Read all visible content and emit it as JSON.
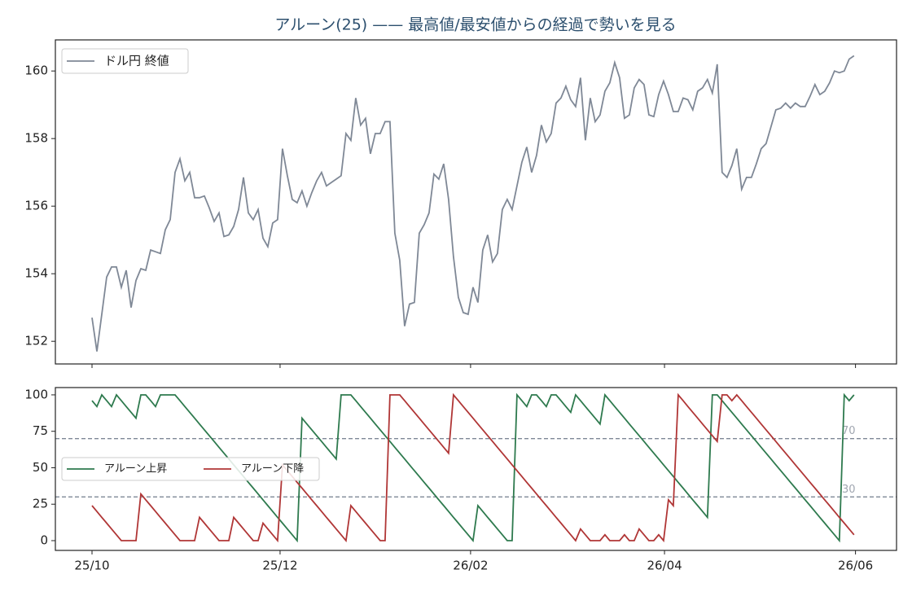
{
  "chart_data": [
    {
      "type": "line",
      "title": "アルーン(25) —— 最高値/最安値からの経過で勢いを見る",
      "series": [
        {
          "name": "ドル円 終値",
          "color": "#7f8896",
          "values": [
            152.7,
            151.7,
            152.8,
            153.9,
            154.2,
            154.2,
            153.6,
            154.1,
            153.0,
            153.8,
            154.15,
            154.1,
            154.7,
            154.65,
            154.6,
            155.3,
            155.6,
            157.0,
            157.4,
            156.75,
            157.0,
            156.25,
            156.25,
            156.3,
            155.95,
            155.55,
            155.8,
            155.1,
            155.15,
            155.4,
            155.9,
            156.85,
            155.8,
            155.6,
            155.9,
            155.05,
            154.8,
            155.5,
            155.6,
            157.7,
            156.9,
            156.2,
            156.1,
            156.45,
            156.0,
            156.4,
            156.75,
            157.0,
            156.6,
            156.7,
            156.8,
            156.9,
            158.15,
            157.95,
            159.2,
            158.4,
            158.6,
            157.55,
            158.15,
            158.15,
            158.5,
            158.5,
            155.2,
            154.4,
            152.45,
            153.1,
            153.15,
            155.2,
            155.45,
            155.8,
            156.95,
            156.8,
            157.25,
            156.2,
            154.5,
            153.3,
            152.85,
            152.8,
            153.6,
            153.15,
            154.7,
            155.15,
            154.35,
            154.6,
            155.9,
            156.2,
            155.9,
            156.6,
            157.3,
            157.75,
            157.0,
            157.5,
            158.4,
            157.9,
            158.15,
            159.05,
            159.2,
            159.55,
            159.15,
            158.95,
            159.8,
            157.95,
            159.2,
            158.5,
            158.7,
            159.4,
            159.65,
            160.25,
            159.8,
            158.6,
            158.7,
            159.5,
            159.75,
            159.6,
            158.7,
            158.65,
            159.3,
            159.7,
            159.3,
            158.8,
            158.8,
            159.2,
            159.15,
            158.85,
            159.4,
            159.5,
            159.75,
            159.35,
            160.2,
            157.0,
            156.85,
            157.2,
            157.7,
            156.5,
            156.85,
            156.85,
            157.25,
            157.7,
            157.85,
            158.35,
            158.85,
            158.9,
            159.05,
            158.9,
            159.05,
            158.95,
            158.95,
            159.25,
            159.6,
            159.3,
            159.4,
            159.65,
            160.0,
            159.95,
            160.0,
            160.35,
            160.45
          ]
        }
      ],
      "xlim": [
        -7.5,
        164.7
      ],
      "ylim": [
        151.33,
        160.92
      ],
      "yticks": [
        152,
        154,
        156,
        158,
        160
      ],
      "legend": "upper left"
    },
    {
      "type": "line",
      "series": [
        {
          "name": "アルーン上昇",
          "color": "#2e7a4e",
          "values": [
            96,
            92,
            100,
            96,
            92,
            100,
            96,
            92,
            88,
            84,
            100,
            100,
            96,
            92,
            100,
            100,
            100,
            100,
            96,
            92,
            88,
            84,
            80,
            76,
            72,
            68,
            64,
            60,
            56,
            52,
            48,
            44,
            40,
            36,
            32,
            28,
            24,
            20,
            16,
            12,
            8,
            4,
            0,
            84,
            80,
            76,
            72,
            68,
            64,
            60,
            56,
            100,
            100,
            100,
            96,
            92,
            88,
            84,
            80,
            76,
            72,
            68,
            64,
            60,
            56,
            52,
            48,
            44,
            40,
            36,
            32,
            28,
            24,
            20,
            16,
            12,
            8,
            4,
            0,
            24,
            20,
            16,
            12,
            8,
            4,
            0,
            0,
            100,
            96,
            92,
            100,
            100,
            96,
            92,
            100,
            100,
            96,
            92,
            88,
            100,
            96,
            92,
            88,
            84,
            80,
            100,
            96,
            92,
            88,
            84,
            80,
            76,
            72,
            68,
            64,
            60,
            56,
            52,
            48,
            44,
            40,
            36,
            32,
            28,
            24,
            20,
            16,
            100,
            100,
            96,
            92,
            88,
            84,
            80,
            76,
            72,
            68,
            64,
            60,
            56,
            52,
            48,
            44,
            40,
            36,
            32,
            28,
            24,
            20,
            16,
            12,
            8,
            4,
            0,
            100,
            96,
            100
          ]
        },
        {
          "name": "アルーン下降",
          "color": "#b03636",
          "values": [
            24,
            20,
            16,
            12,
            8,
            4,
            0,
            0,
            0,
            0,
            32,
            28,
            24,
            20,
            16,
            12,
            8,
            4,
            0,
            0,
            0,
            0,
            16,
            12,
            8,
            4,
            0,
            0,
            0,
            16,
            12,
            8,
            4,
            0,
            0,
            12,
            8,
            4,
            0,
            52,
            48,
            44,
            40,
            36,
            32,
            28,
            24,
            20,
            16,
            12,
            8,
            4,
            0,
            24,
            20,
            16,
            12,
            8,
            4,
            0,
            0,
            100,
            100,
            100,
            96,
            92,
            88,
            84,
            80,
            76,
            72,
            68,
            64,
            60,
            100,
            96,
            92,
            88,
            84,
            80,
            76,
            72,
            68,
            64,
            60,
            56,
            52,
            48,
            44,
            40,
            36,
            32,
            28,
            24,
            20,
            16,
            12,
            8,
            4,
            0,
            8,
            4,
            0,
            0,
            0,
            4,
            0,
            0,
            0,
            4,
            0,
            0,
            8,
            4,
            0,
            0,
            4,
            0,
            28,
            24,
            100,
            96,
            92,
            88,
            84,
            80,
            76,
            72,
            68,
            100,
            100,
            96,
            100,
            96,
            92,
            88,
            84,
            80,
            76,
            72,
            68,
            64,
            60,
            56,
            52,
            48,
            44,
            40,
            36,
            32,
            28,
            24,
            20,
            16,
            12,
            8,
            4
          ]
        }
      ],
      "xlim": [
        -7.5,
        164.7
      ],
      "ylim": [
        -6.7,
        105
      ],
      "yticks": [
        0,
        25,
        50,
        75,
        100
      ],
      "xticks": [
        {
          "value": 0,
          "label": "25/10"
        },
        {
          "value": 38.5,
          "label": "25/12"
        },
        {
          "value": 77.5,
          "label": "26/02"
        },
        {
          "value": 117.2,
          "label": "26/04"
        },
        {
          "value": 156.3,
          "label": "26/06"
        }
      ],
      "hlines": [
        70,
        30
      ],
      "legend": "center left"
    }
  ]
}
